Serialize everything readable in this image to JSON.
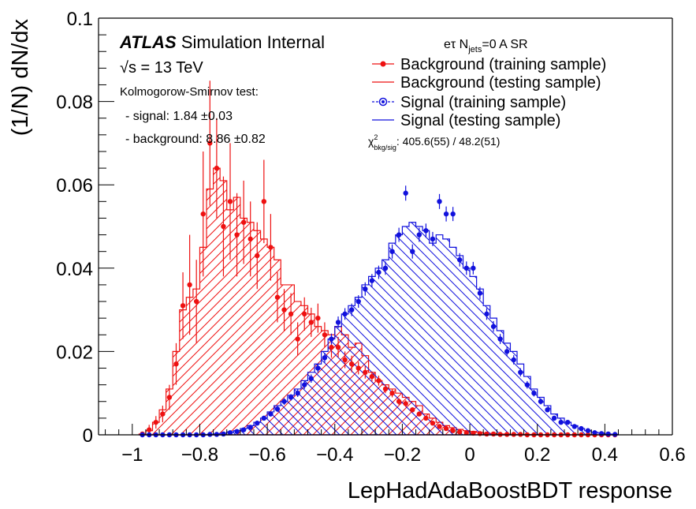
{
  "chart_data": {
    "type": "histogram",
    "xlabel": "LepHadAdaBoostBDT response",
    "ylabel": "(1/N) dN/dx",
    "xlim": [
      -1.1,
      0.6
    ],
    "ylim": [
      0,
      0.1
    ],
    "xticks": [
      -1,
      -0.8,
      -0.6,
      -0.4,
      -0.2,
      0,
      0.2,
      0.4,
      0.6
    ],
    "xtick_labels": [
      "−1",
      "−0.8",
      "−0.6",
      "−0.4",
      "−0.2",
      "0",
      "0.2",
      "0.4",
      "0.6"
    ],
    "yticks": [
      0,
      0.02,
      0.04,
      0.06,
      0.08,
      0.1
    ],
    "ytick_labels": [
      "0",
      "0.02",
      "0.04",
      "0.06",
      "0.08",
      "0.1"
    ],
    "grid": false,
    "legend_position": "top-right",
    "colors": {
      "background": "#ee1111",
      "signal": "#1111dd"
    },
    "bin_centers": [
      -0.97,
      -0.95,
      -0.93,
      -0.91,
      -0.89,
      -0.87,
      -0.85,
      -0.83,
      -0.81,
      -0.79,
      -0.77,
      -0.75,
      -0.73,
      -0.71,
      -0.69,
      -0.67,
      -0.65,
      -0.63,
      -0.61,
      -0.59,
      -0.57,
      -0.55,
      -0.53,
      -0.51,
      -0.49,
      -0.47,
      -0.45,
      -0.43,
      -0.41,
      -0.39,
      -0.37,
      -0.35,
      -0.33,
      -0.31,
      -0.29,
      -0.27,
      -0.25,
      -0.23,
      -0.21,
      -0.19,
      -0.17,
      -0.15,
      -0.13,
      -0.11,
      -0.09,
      -0.07,
      -0.05,
      -0.03,
      -0.01,
      0.01,
      0.03,
      0.05,
      0.07,
      0.09,
      0.11,
      0.13,
      0.15,
      0.17,
      0.19,
      0.21,
      0.23,
      0.25,
      0.27,
      0.29,
      0.31,
      0.33,
      0.35,
      0.37,
      0.39,
      0.41,
      0.43
    ],
    "series": [
      {
        "name": "Background (training sample)",
        "style": "points",
        "color": "#ee1111",
        "values": [
          0.0002,
          0.0012,
          0.003,
          0.005,
          0.009,
          0.017,
          0.031,
          0.036,
          0.032,
          0.053,
          0.07,
          0.064,
          0.05,
          0.056,
          0.048,
          0.051,
          0.047,
          0.043,
          0.056,
          0.045,
          0.033,
          0.03,
          0.029,
          0.023,
          0.029,
          0.027,
          0.028,
          0.024,
          0.021,
          0.021,
          0.018,
          0.017,
          0.016,
          0.015,
          0.014,
          0.013,
          0.011,
          0.01,
          0.008,
          0.0075,
          0.006,
          0.005,
          0.004,
          0.0028,
          0.002,
          0.0015,
          0.001,
          0.0007,
          0.0005,
          0.0004,
          0.0003,
          0.0002,
          0.0002,
          0.0001,
          0.0001,
          0.0001,
          0.0001,
          0.0,
          0.0,
          0.0,
          0.0,
          0.0,
          0.0,
          0.0,
          0.0,
          0.0,
          0.0,
          0.0,
          0.0,
          0.0,
          0.0
        ],
        "errors": [
          0.0003,
          0.0012,
          0.0015,
          0.002,
          0.003,
          0.005,
          0.008,
          0.012,
          0.01,
          0.015,
          0.015,
          0.012,
          0.012,
          0.014,
          0.01,
          0.01,
          0.009,
          0.008,
          0.01,
          0.008,
          0.006,
          0.005,
          0.005,
          0.004,
          0.004,
          0.0035,
          0.0035,
          0.003,
          0.0025,
          0.0025,
          0.002,
          0.002,
          0.0015,
          0.0015,
          0.0012,
          0.0012,
          0.001,
          0.001,
          0.0008,
          0.0008,
          0.0006,
          0.0005,
          0.0005,
          0.0004,
          0.0003,
          0.0003,
          0.0002,
          0.0002,
          0.0002,
          0.0002,
          0.0001,
          0.0001,
          0.0001,
          0.0001,
          0.0001,
          0.0001,
          0.0001,
          0.0,
          0.0,
          0.0,
          0.0,
          0.0,
          0.0,
          0.0,
          0.0,
          0.0,
          0.0,
          0.0,
          0.0,
          0.0,
          0.0
        ]
      },
      {
        "name": "Background (testing sample)",
        "style": "hatched-histogram",
        "color": "#ee1111",
        "values": [
          0.0002,
          0.001,
          0.003,
          0.006,
          0.011,
          0.02,
          0.03,
          0.033,
          0.035,
          0.045,
          0.059,
          0.064,
          0.061,
          0.054,
          0.057,
          0.052,
          0.051,
          0.049,
          0.047,
          0.045,
          0.042,
          0.036,
          0.036,
          0.032,
          0.031,
          0.029,
          0.026,
          0.025,
          0.024,
          0.026,
          0.024,
          0.021,
          0.022,
          0.019,
          0.015,
          0.013,
          0.012,
          0.011,
          0.01,
          0.009,
          0.008,
          0.007,
          0.005,
          0.004,
          0.003,
          0.0022,
          0.0017,
          0.0013,
          0.001,
          0.0008,
          0.0006,
          0.0004,
          0.0003,
          0.0002,
          0.0002,
          0.0001,
          0.0001,
          0.0001,
          0.0001,
          0.0,
          0.0,
          0.0,
          0.0,
          0.0,
          0.0,
          0.0,
          0.0,
          0.0,
          0.0,
          0.0,
          0.0
        ]
      },
      {
        "name": "Signal (training sample)",
        "style": "points",
        "color": "#1111dd",
        "values": [
          0.0,
          0.0,
          0.0,
          0.0,
          0.0,
          0.0,
          0.0,
          0.0,
          0.0,
          0.0,
          0.0001,
          0.0001,
          0.0002,
          0.0005,
          0.0008,
          0.0012,
          0.0018,
          0.0028,
          0.004,
          0.005,
          0.0062,
          0.008,
          0.009,
          0.01,
          0.012,
          0.0135,
          0.016,
          0.0185,
          0.023,
          0.027,
          0.029,
          0.03,
          0.032,
          0.035,
          0.037,
          0.039,
          0.04,
          0.044,
          0.048,
          0.058,
          0.044,
          0.048,
          0.049,
          0.047,
          0.056,
          0.053,
          0.053,
          0.042,
          0.04,
          0.04,
          0.034,
          0.029,
          0.026,
          0.023,
          0.02,
          0.018,
          0.015,
          0.012,
          0.01,
          0.008,
          0.006,
          0.004,
          0.003,
          0.003,
          0.002,
          0.0015,
          0.001,
          0.0005,
          0.0003,
          0.0002,
          0.0001
        ],
        "errors": [
          0,
          0,
          0,
          0,
          0,
          0,
          0,
          0,
          0,
          0,
          0,
          0,
          0.0001,
          0.0002,
          0.0002,
          0.0003,
          0.0004,
          0.0005,
          0.0005,
          0.0006,
          0.0007,
          0.0008,
          0.0008,
          0.0009,
          0.001,
          0.001,
          0.0011,
          0.0012,
          0.0013,
          0.0014,
          0.0014,
          0.0015,
          0.0015,
          0.0016,
          0.0016,
          0.0016,
          0.0016,
          0.0017,
          0.0017,
          0.0018,
          0.0017,
          0.0017,
          0.0017,
          0.0017,
          0.0018,
          0.0018,
          0.0017,
          0.0016,
          0.0016,
          0.0015,
          0.0015,
          0.0014,
          0.0013,
          0.0012,
          0.0012,
          0.0011,
          0.001,
          0.0009,
          0.0008,
          0.0007,
          0.0006,
          0.0005,
          0.0004,
          0.0004,
          0.0003,
          0.0003,
          0.0002,
          0.0002,
          0.0001,
          0.0001,
          0.0001
        ]
      },
      {
        "name": "Signal (testing sample)",
        "style": "hatched-histogram",
        "color": "#1111dd",
        "values": [
          0.0,
          0.0,
          0.0,
          0.0,
          0.0,
          0.0,
          0.0,
          0.0,
          0.0,
          0.0,
          0.0001,
          0.0002,
          0.0004,
          0.0007,
          0.001,
          0.0015,
          0.0022,
          0.003,
          0.004,
          0.0055,
          0.007,
          0.008,
          0.0095,
          0.011,
          0.013,
          0.015,
          0.017,
          0.02,
          0.023,
          0.026,
          0.029,
          0.031,
          0.033,
          0.036,
          0.038,
          0.04,
          0.042,
          0.046,
          0.048,
          0.05,
          0.051,
          0.05,
          0.049,
          0.046,
          0.048,
          0.047,
          0.045,
          0.043,
          0.04,
          0.038,
          0.035,
          0.031,
          0.028,
          0.025,
          0.022,
          0.02,
          0.017,
          0.014,
          0.011,
          0.009,
          0.007,
          0.005,
          0.004,
          0.003,
          0.0022,
          0.0015,
          0.001,
          0.0006,
          0.0004,
          0.0002,
          0.0001
        ]
      }
    ]
  },
  "annotations": {
    "atlas": "ATLAS",
    "atlas_suffix": " Simulation Internal",
    "sqrt_s": "√s = 13 TeV",
    "ks_title": "Kolmogorow-Smirnov test:",
    "ks_signal": "- signal: 1.84 ±0.03",
    "ks_background": "- background: 8.86 ±0.82",
    "region_main": "eτ N",
    "region_sub": "jets",
    "region_rest": "=0 A SR",
    "chi2_symbol": "χ",
    "chi2_sup": "2",
    "chi2_sub": "bkg/sig",
    "chi2_value": ": 405.6(55) / 48.2(51)"
  }
}
